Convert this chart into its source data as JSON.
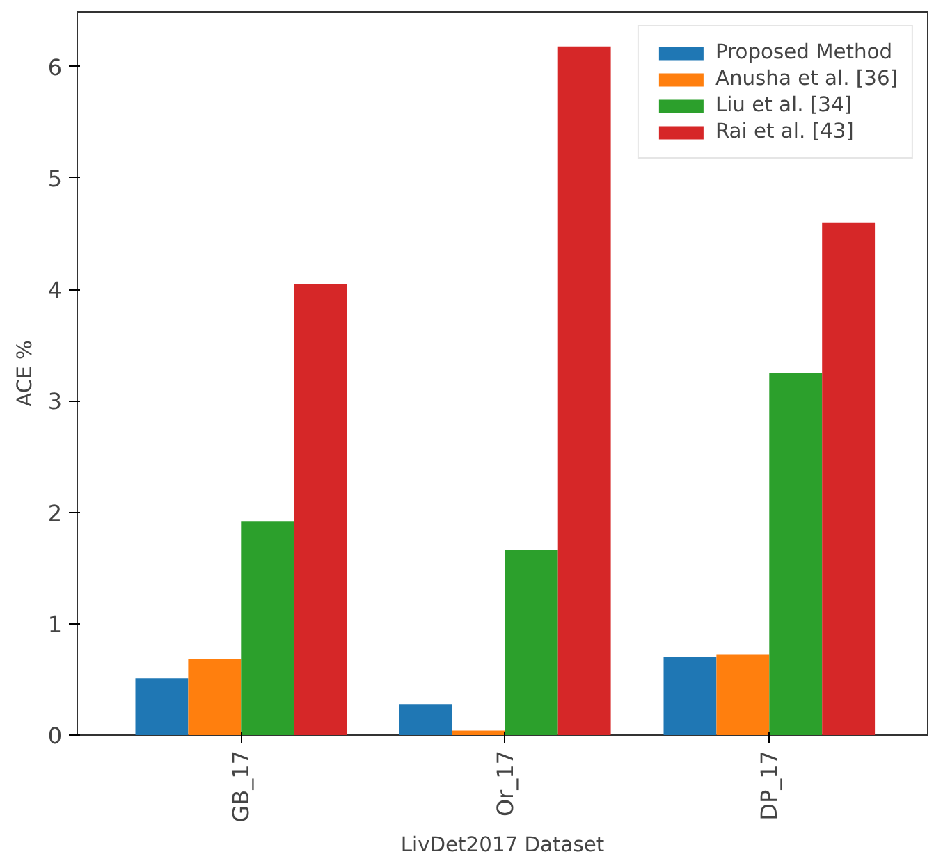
{
  "chart_data": {
    "type": "bar",
    "xlabel": "LivDet2017 Dataset",
    "ylabel": "ACE %",
    "categories": [
      "GB_17",
      "Or_17",
      "DP_17"
    ],
    "series": [
      {
        "name": "Proposed Method",
        "color": "#1f77b4",
        "values": [
          0.51,
          0.28,
          0.7
        ]
      },
      {
        "name": "Anusha et al. [36]",
        "color": "#ff7f0e",
        "values": [
          0.68,
          0.04,
          0.72
        ]
      },
      {
        "name": "Liu et al. [34]",
        "color": "#2ca02c",
        "values": [
          1.92,
          1.66,
          3.25
        ]
      },
      {
        "name": "Rai et al. [43]",
        "color": "#d62728",
        "values": [
          4.05,
          6.18,
          4.6
        ]
      }
    ],
    "ylim": [
      0,
      6.49
    ],
    "yticks": [
      0,
      1,
      2,
      3,
      4,
      5,
      6
    ],
    "grid": false,
    "legend": "top right"
  }
}
